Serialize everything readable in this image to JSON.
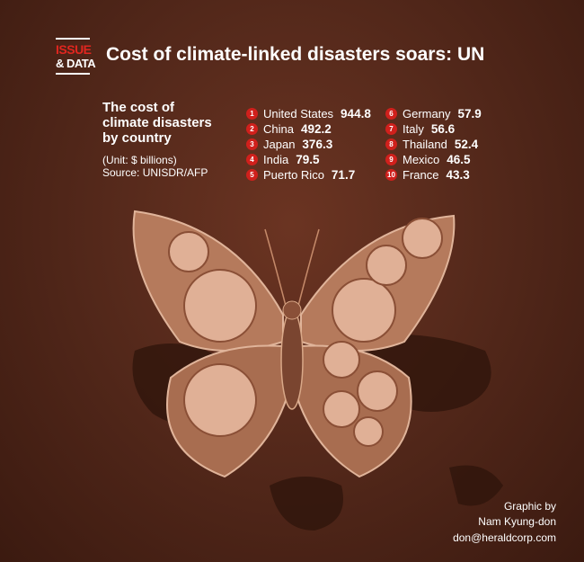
{
  "logo": {
    "top": "ISSUE",
    "bottom": "& DATA"
  },
  "header": {
    "title": "Cost of climate-linked disasters soars: UN"
  },
  "intro": {
    "title_lines": [
      "The cost of",
      "climate disasters",
      "by country"
    ],
    "unit": "(Unit: $ billions)",
    "source": "Source: UNISDR/AFP"
  },
  "ranking": [
    {
      "rank": 1,
      "country": "United States",
      "value": 944.8
    },
    {
      "rank": 2,
      "country": "China",
      "value": 492.2
    },
    {
      "rank": 3,
      "country": "Japan",
      "value": 376.3
    },
    {
      "rank": 4,
      "country": "India",
      "value": 79.5
    },
    {
      "rank": 5,
      "country": "Puerto Rico",
      "value": 71.7
    },
    {
      "rank": 6,
      "country": "Germany",
      "value": 57.9
    },
    {
      "rank": 7,
      "country": "Italy",
      "value": 56.6
    },
    {
      "rank": 8,
      "country": "Thailand",
      "value": 52.4
    },
    {
      "rank": 9,
      "country": "Mexico",
      "value": 46.5
    },
    {
      "rank": 10,
      "country": "France",
      "value": 43.3
    }
  ],
  "credits": {
    "line1": "Graphic by",
    "line2": "Nam Kyung-don",
    "email": "don@heraldcorp.com"
  }
}
